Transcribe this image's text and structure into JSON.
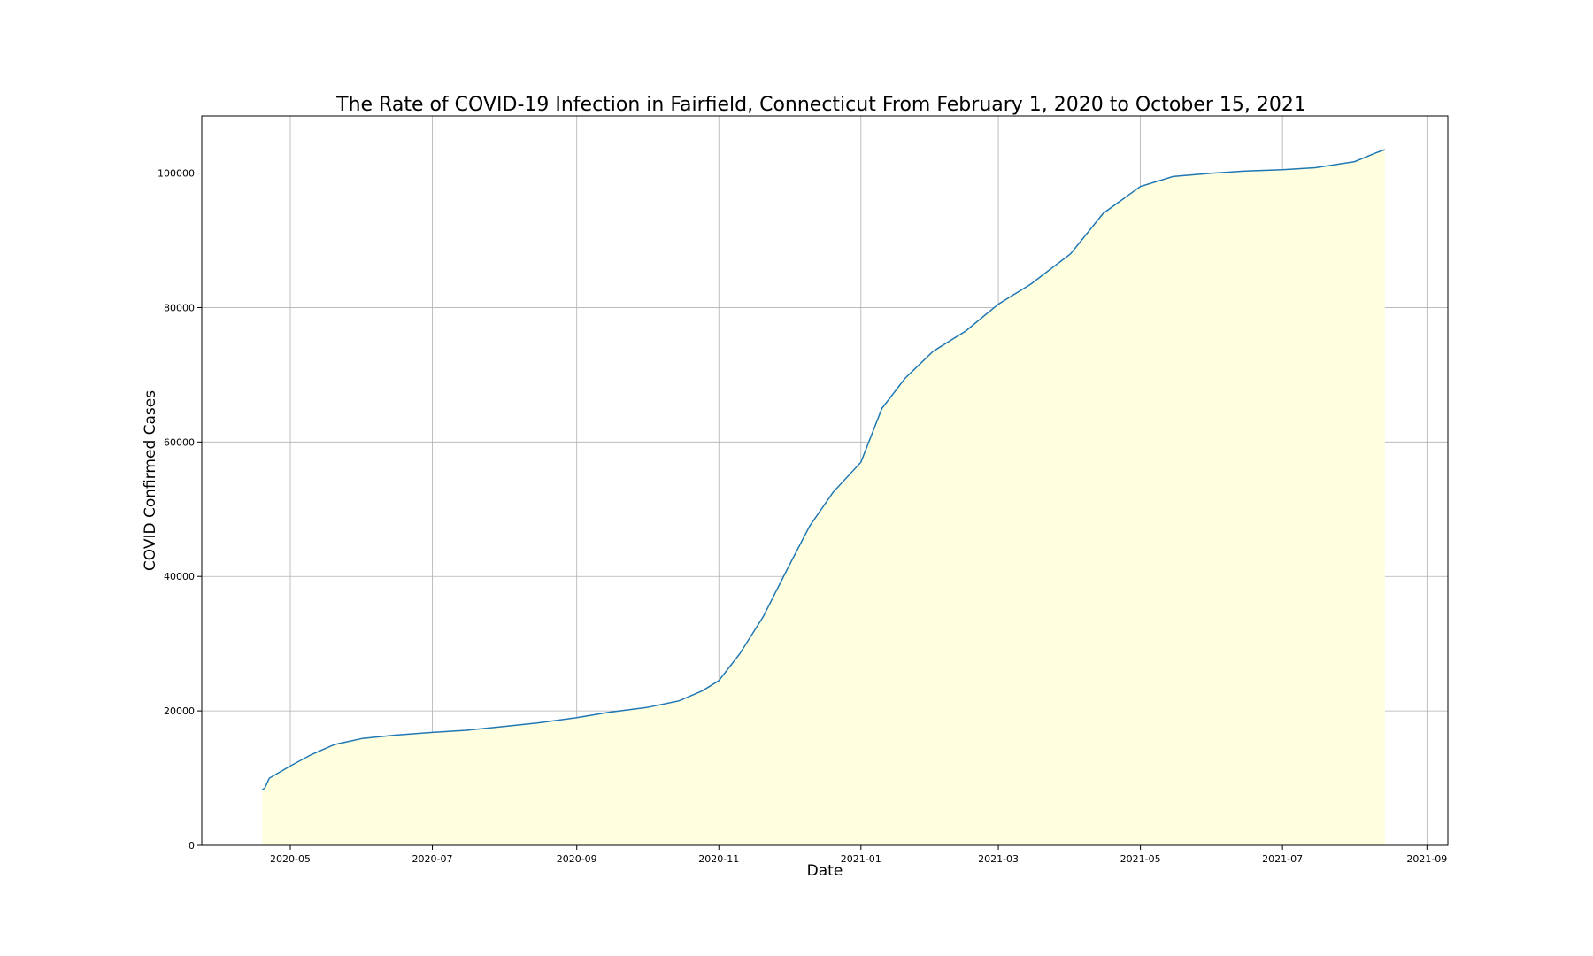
{
  "chart_data": {
    "type": "area",
    "title": "The Rate of COVID-19 Infection in Fairfield, Connecticut From February 1, 2020 to October 15, 2021",
    "xlabel": "Date",
    "ylabel": "COVID Confirmed Cases",
    "xlim": [
      "2020-03-24",
      "2021-09-10"
    ],
    "ylim": [
      0,
      108500
    ],
    "grid": true,
    "legend": "none",
    "x_ticks": [
      "2020-05-01",
      "2020-07-01",
      "2020-09-01",
      "2020-11-01",
      "2021-01-01",
      "2021-03-01",
      "2021-05-01",
      "2021-07-01",
      "2021-09-01"
    ],
    "x_tick_labels": [
      "2020-05",
      "2020-07",
      "2020-09",
      "2020-11",
      "2021-01",
      "2021-03",
      "2021-05",
      "2021-07",
      "2021-09"
    ],
    "y_ticks": [
      0,
      20000,
      40000,
      60000,
      80000,
      100000
    ],
    "y_tick_labels": [
      "0",
      "20000",
      "40000",
      "60000",
      "80000",
      "100000"
    ],
    "colors": {
      "line": "#1f77b4",
      "fill": "#ffffe0",
      "grid": "#b0b0b0"
    },
    "series": [
      {
        "x": [
          "2020-04-19",
          "2020-04-20",
          "2020-04-22",
          "2020-05-01",
          "2020-05-10",
          "2020-05-20",
          "2020-06-01",
          "2020-06-15",
          "2020-07-01",
          "2020-07-15",
          "2020-08-01",
          "2020-08-15",
          "2020-09-01",
          "2020-09-15",
          "2020-10-01",
          "2020-10-15",
          "2020-10-25",
          "2020-11-01",
          "2020-11-10",
          "2020-11-20",
          "2020-12-01",
          "2020-12-10",
          "2020-12-20",
          "2021-01-01",
          "2021-01-10",
          "2021-01-20",
          "2021-02-01",
          "2021-02-15",
          "2021-03-01",
          "2021-03-15",
          "2021-04-01",
          "2021-04-15",
          "2021-05-01",
          "2021-05-15",
          "2021-06-01",
          "2021-06-15",
          "2021-07-01",
          "2021-07-15",
          "2021-08-01",
          "2021-08-10",
          "2021-08-14"
        ],
        "y": [
          8300,
          8500,
          10000,
          11800,
          13500,
          15000,
          15900,
          16400,
          16800,
          17100,
          17700,
          18200,
          19000,
          19800,
          20500,
          21500,
          23000,
          24500,
          28500,
          34000,
          41500,
          47500,
          52500,
          57000,
          65000,
          69500,
          73500,
          76500,
          80500,
          83500,
          88000,
          94000,
          98000,
          99500,
          100000,
          100300,
          100500,
          100800,
          101700,
          103000,
          103500
        ]
      }
    ]
  }
}
